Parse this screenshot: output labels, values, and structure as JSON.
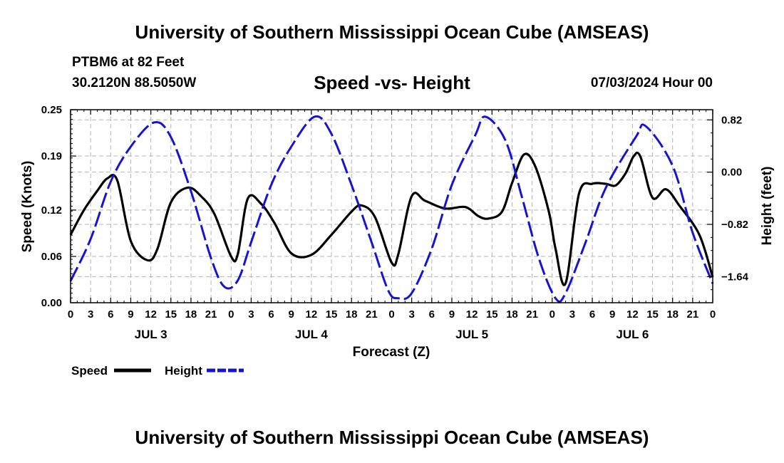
{
  "header": {
    "title": "University of Southern Mississippi Ocean Cube (AMSEAS)",
    "station": "PTBM6 at 82 Feet",
    "coords": "30.2120N  88.5050W",
    "subtitle": "Speed -vs- Height",
    "run_time": "07/03/2024 Hour 00"
  },
  "footer": {
    "title": "University of Southern Mississippi Ocean Cube (AMSEAS)"
  },
  "chart_data": {
    "type": "line",
    "title": "Speed -vs- Height",
    "xlabel": "Forecast (Z)",
    "ylabel": "Speed (Knots)",
    "y2label": "Height (feet)",
    "x_range_hours": [
      0,
      96
    ],
    "x_tick_step_hours": 3,
    "x_tick_labels": [
      "0",
      "3",
      "6",
      "9",
      "12",
      "15",
      "18",
      "21",
      "0",
      "3",
      "6",
      "9",
      "12",
      "15",
      "18",
      "21",
      "0",
      "3",
      "6",
      "9",
      "12",
      "15",
      "18",
      "21",
      "0",
      "3",
      "6",
      "9",
      "12",
      "15",
      "18",
      "21",
      "0"
    ],
    "day_labels": [
      {
        "label": "JUL 3",
        "center_hour": 12
      },
      {
        "label": "JUL 4",
        "center_hour": 36
      },
      {
        "label": "JUL 5",
        "center_hour": 60
      },
      {
        "label": "JUL 6",
        "center_hour": 84
      }
    ],
    "ylim": [
      0,
      0.25
    ],
    "y_ticks": [
      0.0,
      0.06,
      0.12,
      0.19,
      0.25
    ],
    "y_tick_labels": [
      "0.00",
      "0.06",
      "0.12",
      "0.19",
      "0.25"
    ],
    "y2lim": [
      -2.05,
      0.98
    ],
    "y2_ticks": [
      -1.64,
      -0.82,
      0.0,
      0.82
    ],
    "y2_tick_labels": [
      "−1.64",
      "−0.82",
      "0.00",
      "0.82"
    ],
    "grid": true,
    "legend_position": "bottom-left",
    "series": [
      {
        "name": "Speed",
        "color": "#000000",
        "dash": "solid",
        "axis": "left",
        "x": [
          0,
          2,
          4,
          5.5,
          7,
          9,
          11.5,
          13,
          15,
          17.5,
          19.5,
          21.5,
          24,
          25,
          26.5,
          28.5,
          30.5,
          33,
          36,
          39,
          42,
          43.5,
          45.5,
          48,
          49,
          51,
          53,
          56,
          59,
          61,
          62.5,
          64.5,
          66,
          67.8,
          69.5,
          71.5,
          72.5,
          74,
          76,
          78,
          80,
          81.5,
          83,
          84.2,
          85.2,
          87,
          89,
          91,
          94,
          96
        ],
        "values": [
          0.088,
          0.12,
          0.145,
          0.161,
          0.158,
          0.08,
          0.055,
          0.07,
          0.13,
          0.149,
          0.138,
          0.115,
          0.06,
          0.063,
          0.135,
          0.128,
          0.103,
          0.064,
          0.062,
          0.088,
          0.118,
          0.126,
          0.111,
          0.052,
          0.063,
          0.138,
          0.132,
          0.122,
          0.124,
          0.112,
          0.109,
          0.118,
          0.155,
          0.192,
          0.176,
          0.118,
          0.07,
          0.025,
          0.141,
          0.154,
          0.154,
          0.152,
          0.168,
          0.19,
          0.189,
          0.136,
          0.147,
          0.126,
          0.088,
          0.033
        ]
      },
      {
        "name": "Height",
        "color": "#1414d2",
        "dash": "dashed",
        "axis": "right",
        "x": [
          0,
          3,
          6,
          9,
          12.5,
          15,
          18,
          21,
          23,
          25,
          27,
          30,
          33,
          36.5,
          39,
          42,
          45,
          47.5,
          49,
          51,
          54,
          57,
          60.5,
          62,
          65,
          67.5,
          70,
          72.5,
          74,
          77,
          80,
          84.5,
          86,
          90,
          93,
          96
        ],
        "values": [
          -1.71,
          -1.05,
          -0.15,
          0.4,
          0.78,
          0.55,
          -0.3,
          -1.35,
          -1.8,
          -1.7,
          -1.1,
          -0.2,
          0.4,
          0.87,
          0.6,
          -0.2,
          -1.1,
          -1.86,
          -1.98,
          -1.9,
          -1.2,
          -0.2,
          0.58,
          0.87,
          0.5,
          -0.4,
          -1.35,
          -1.98,
          -1.9,
          -1.1,
          -0.25,
          0.55,
          0.72,
          0.1,
          -0.95,
          -1.75
        ]
      }
    ]
  },
  "legend": {
    "speed_label": "Speed",
    "height_label": "Height"
  }
}
